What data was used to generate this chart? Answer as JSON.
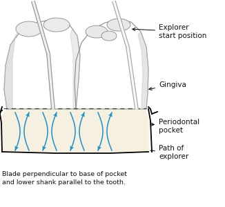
{
  "caption_line1": "Blade perpendicular to base of pocket",
  "caption_line2": "and lower shank parallel to the tooth.",
  "labels": {
    "explorer": "Explorer\nstart position",
    "gingiva": "Gingiva",
    "periodontal": "Periodontal\npocket",
    "path": "Path of\nexplorer"
  },
  "colors": {
    "background": "#ffffff",
    "tooth_fill": "#ffffff",
    "tooth_outline": "#888888",
    "tooth_shadow": "#c0c0c0",
    "pocket_fill": "#f5f0e0",
    "pocket_outline": "#111111",
    "dashed_line": "#444444",
    "arrow_blue": "#2090c8",
    "instrument_fill": "#f0f0f0",
    "instrument_outline": "#999999",
    "label_color": "#111111",
    "caption_color": "#111111"
  },
  "figsize": [
    3.26,
    3.0
  ],
  "dpi": 100
}
